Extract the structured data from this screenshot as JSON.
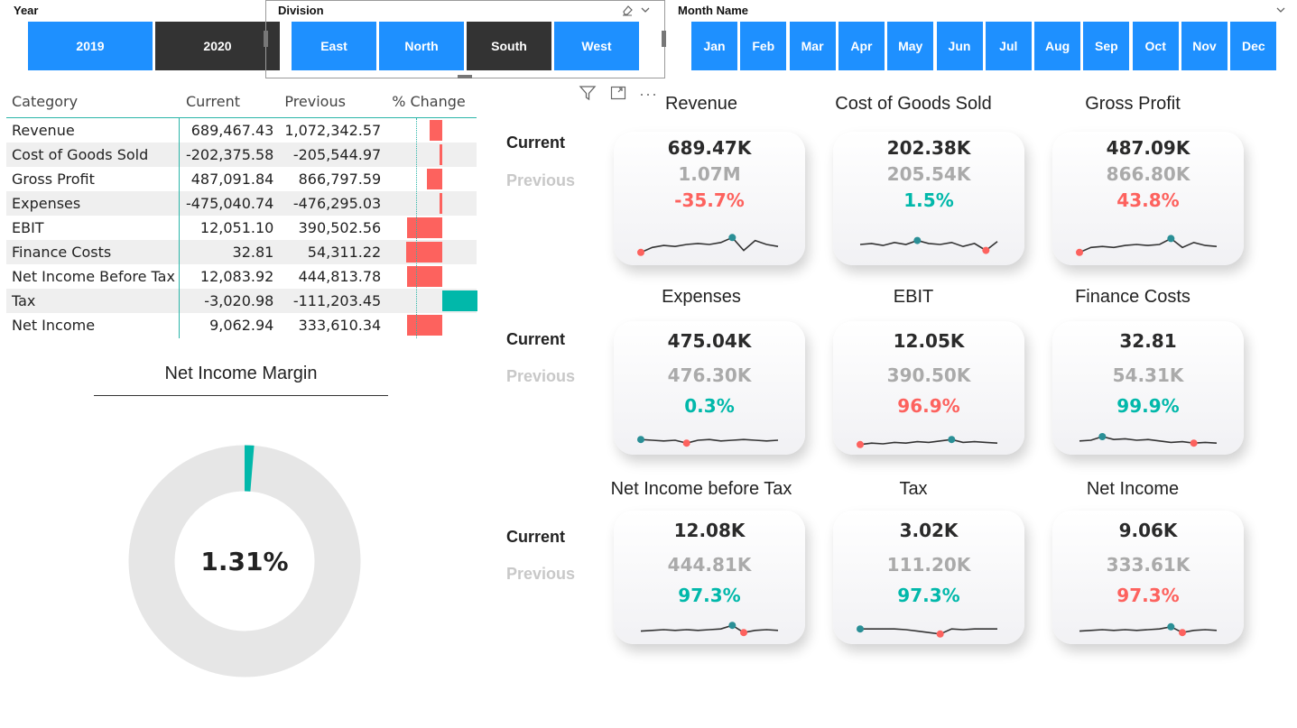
{
  "slicers": {
    "year": {
      "title": "Year",
      "options": [
        "2019",
        "2020"
      ],
      "selected": "2020"
    },
    "division": {
      "title": "Division",
      "options": [
        "East",
        "North",
        "South",
        "West"
      ],
      "selected": "South"
    },
    "month": {
      "title": "Month Name",
      "options": [
        "Jan",
        "Feb",
        "Mar",
        "Apr",
        "May",
        "Jun",
        "Jul",
        "Aug",
        "Sep",
        "Oct",
        "Nov",
        "Dec"
      ]
    }
  },
  "matrix": {
    "headers": [
      "Category",
      "Current",
      "Previous",
      "% Change"
    ],
    "rows": [
      {
        "category": "Revenue",
        "current": "689,467.43",
        "previous": "1,072,342.57",
        "pct_change": -0.357
      },
      {
        "category": "Cost of Goods Sold",
        "current": "-202,375.58",
        "previous": "-205,544.97",
        "pct_change": -0.015
      },
      {
        "category": "Gross Profit",
        "current": "487,091.84",
        "previous": "866,797.59",
        "pct_change": -0.438
      },
      {
        "category": "Expenses",
        "current": "-475,040.74",
        "previous": "-476,295.03",
        "pct_change": -0.003
      },
      {
        "category": "EBIT",
        "current": "12,051.10",
        "previous": "390,502.56",
        "pct_change": -0.969
      },
      {
        "category": "Finance Costs",
        "current": "32.81",
        "previous": "54,311.22",
        "pct_change": -0.999
      },
      {
        "category": "Net Income Before Tax",
        "current": "12,083.92",
        "previous": "444,813.78",
        "pct_change": -0.973
      },
      {
        "category": "Tax",
        "current": "-3,020.98",
        "previous": "-111,203.45",
        "pct_change": 0.973
      },
      {
        "category": "Net Income",
        "current": "9,062.94",
        "previous": "333,610.34",
        "pct_change": -0.973
      }
    ]
  },
  "donut": {
    "title": "Net Income Margin",
    "value_label": "1.31%",
    "value": 0.0131
  },
  "kpi": {
    "current_label": "Current",
    "previous_label": "Previous",
    "cards": [
      {
        "title": "Revenue",
        "current": "689.47K",
        "previous": "1.07M",
        "change": "-35.7%",
        "status": "bad",
        "trend": [
          0.1,
          0.35,
          0.45,
          0.4,
          0.5,
          0.55,
          0.5,
          0.6,
          0.85,
          0.2,
          0.7,
          0.5,
          0.4
        ]
      },
      {
        "title": "Cost of Goods Sold",
        "current": "202.38K",
        "previous": "205.54K",
        "change": "1.5%",
        "status": "good",
        "trend": [
          0.5,
          0.55,
          0.45,
          0.6,
          0.5,
          0.7,
          0.55,
          0.5,
          0.6,
          0.4,
          0.55,
          0.2,
          0.65
        ]
      },
      {
        "title": "Gross Profit",
        "current": "487.09K",
        "previous": "866.80K",
        "change": "43.8%",
        "status": "bad",
        "trend": [
          0.1,
          0.35,
          0.4,
          0.35,
          0.45,
          0.5,
          0.45,
          0.5,
          0.8,
          0.35,
          0.6,
          0.45,
          0.4
        ]
      },
      {
        "title": "Expenses",
        "current": "475.04K",
        "previous": "476.30K",
        "change": "0.3%",
        "status": "good",
        "trend": [
          0.55,
          0.5,
          0.45,
          0.5,
          0.3,
          0.5,
          0.55,
          0.45,
          0.5,
          0.55,
          0.5,
          0.45,
          0.5
        ]
      },
      {
        "title": "EBIT",
        "current": "12.05K",
        "previous": "390.50K",
        "change": "96.9%",
        "status": "bad",
        "trend": [
          0.2,
          0.3,
          0.25,
          0.35,
          0.3,
          0.4,
          0.35,
          0.45,
          0.55,
          0.35,
          0.4,
          0.35,
          0.3
        ]
      },
      {
        "title": "Finance Costs",
        "current": "32.81",
        "previous": "54.31K",
        "change": "99.9%",
        "status": "good",
        "trend": [
          0.45,
          0.5,
          0.75,
          0.55,
          0.6,
          0.5,
          0.55,
          0.45,
          0.35,
          0.4,
          0.3,
          0.35,
          0.3
        ]
      },
      {
        "title": "Net Income before Tax",
        "current": "12.08K",
        "previous": "444.81K",
        "change": "97.3%",
        "status": "good",
        "trend": [
          0.4,
          0.45,
          0.5,
          0.45,
          0.5,
          0.45,
          0.5,
          0.55,
          0.8,
          0.3,
          0.45,
          0.5,
          0.45
        ]
      },
      {
        "title": "Tax",
        "current": "3.02K",
        "previous": "111.20K",
        "change": "97.3%",
        "status": "good",
        "trend": [
          0.55,
          0.55,
          0.55,
          0.55,
          0.5,
          0.4,
          0.3,
          0.2,
          0.55,
          0.5,
          0.55,
          0.55,
          0.55
        ]
      },
      {
        "title": "Net Income",
        "current": "9.06K",
        "previous": "333.61K",
        "change": "97.3%",
        "status": "bad",
        "trend": [
          0.4,
          0.45,
          0.5,
          0.45,
          0.5,
          0.45,
          0.5,
          0.55,
          0.7,
          0.3,
          0.45,
          0.5,
          0.45
        ]
      }
    ]
  },
  "colors": {
    "accent": "#1e90ff",
    "selected": "#333333",
    "good": "#01b8aa",
    "bad": "#fd625e",
    "donut_track": "#e6e6e6"
  },
  "icons": [
    "eraser-icon",
    "chevron-down-icon",
    "filter-icon",
    "focus-mode-icon",
    "more-options-icon"
  ]
}
